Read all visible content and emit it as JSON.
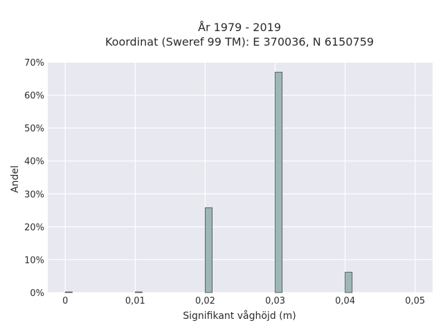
{
  "chart_data": {
    "type": "bar",
    "title_line1": "År 1979 - 2019",
    "title_line2": "Koordinat (Sweref 99 TM): E 370036, N 6150759",
    "xlabel": "Signifikant våghöjd (m)",
    "ylabel": "Andel",
    "xlim": [
      -0.0025,
      0.0525
    ],
    "ylim": [
      0,
      70
    ],
    "x_ticks": [
      0,
      0.01,
      0.02,
      0.03,
      0.04,
      0.05
    ],
    "x_tick_labels": [
      "0",
      "0,01",
      "0,02",
      "0,03",
      "0,04",
      "0,05"
    ],
    "y_ticks": [
      0,
      10,
      20,
      30,
      40,
      50,
      60,
      70
    ],
    "y_tick_labels": [
      "0%",
      "10%",
      "20%",
      "30%",
      "40%",
      "50%",
      "60%",
      "70%"
    ],
    "bin_width": 0.001,
    "bars": [
      {
        "x": 0.0,
        "value": 0.2
      },
      {
        "x": 0.01,
        "value": 0.2
      },
      {
        "x": 0.02,
        "value": 25.8
      },
      {
        "x": 0.03,
        "value": 67.0
      },
      {
        "x": 0.04,
        "value": 6.2
      }
    ],
    "grid": true,
    "colors": {
      "background": "#e8e8f0",
      "grid": "#ffffff",
      "bar_fill": "#9fb6b6",
      "bar_stroke": "#3d4a4a"
    }
  }
}
